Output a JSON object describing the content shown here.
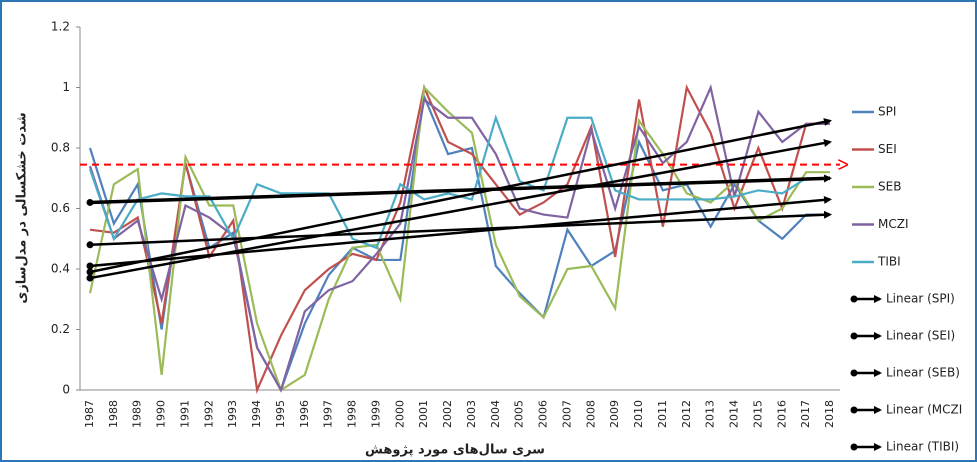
{
  "chart_data": {
    "type": "line",
    "y_label": "شدت خشکسالی در مدل‌سازی",
    "x_label": "سری سال‌های مورد پژوهش",
    "categories": [
      "1987",
      "1988",
      "1989",
      "1990",
      "1991",
      "1992",
      "1993",
      "1994",
      "1995",
      "1996",
      "1997",
      "1998",
      "1999",
      "2000",
      "2001",
      "2002",
      "2003",
      "2004",
      "2005",
      "2006",
      "2007",
      "2008",
      "2009",
      "2010",
      "2011",
      "2012",
      "2013",
      "2014",
      "2015",
      "2016",
      "2017",
      "2018"
    ],
    "series": [
      {
        "name": "SPI",
        "color": "#4f81bd",
        "values": [
          0.8,
          0.55,
          0.68,
          0.2,
          0.75,
          0.47,
          0.52,
          0.14,
          0.0,
          0.22,
          0.38,
          0.47,
          0.43,
          0.43,
          0.97,
          0.78,
          0.8,
          0.41,
          0.32,
          0.24,
          0.53,
          0.41,
          0.46,
          0.82,
          0.66,
          0.68,
          0.54,
          0.68,
          0.56,
          0.5,
          0.58,
          0.58
        ]
      },
      {
        "name": "SEI",
        "color": "#c0504d",
        "values": [
          0.53,
          0.52,
          0.57,
          0.22,
          0.75,
          0.44,
          0.56,
          0.0,
          0.18,
          0.33,
          0.4,
          0.45,
          0.43,
          0.62,
          1.0,
          0.82,
          0.78,
          0.68,
          0.58,
          0.62,
          0.68,
          0.87,
          0.44,
          0.96,
          0.54,
          1.0,
          0.85,
          0.6,
          0.8,
          0.6,
          0.88,
          0.88
        ]
      },
      {
        "name": "SEB",
        "color": "#9bbb59",
        "values": [
          0.32,
          0.68,
          0.73,
          0.05,
          0.77,
          0.61,
          0.61,
          0.22,
          0.0,
          0.05,
          0.3,
          0.47,
          0.48,
          0.3,
          1.0,
          0.92,
          0.85,
          0.48,
          0.31,
          0.24,
          0.4,
          0.41,
          0.27,
          0.89,
          0.78,
          0.65,
          0.62,
          0.69,
          0.56,
          0.6,
          0.72,
          0.72
        ]
      },
      {
        "name": "MCZI",
        "color": "#8064a2",
        "values": [
          0.74,
          0.5,
          0.56,
          0.3,
          0.61,
          0.57,
          0.51,
          0.14,
          0.0,
          0.26,
          0.33,
          0.36,
          0.45,
          0.55,
          0.96,
          0.9,
          0.9,
          0.78,
          0.6,
          0.58,
          0.57,
          0.86,
          0.6,
          0.87,
          0.75,
          0.82,
          1.0,
          0.64,
          0.92,
          0.82,
          0.88,
          0.88
        ]
      },
      {
        "name": "TIBI",
        "color": "#4bacc6",
        "values": [
          0.73,
          0.5,
          0.63,
          0.65,
          0.64,
          0.64,
          0.5,
          0.68,
          0.65,
          0.65,
          0.65,
          0.5,
          0.47,
          0.68,
          0.63,
          0.65,
          0.63,
          0.9,
          0.69,
          0.66,
          0.9,
          0.9,
          0.66,
          0.63,
          0.63,
          0.63,
          0.63,
          0.64,
          0.66,
          0.65,
          0.7,
          0.7
        ]
      }
    ],
    "trendlines": [
      {
        "name": "Linear (SPI)",
        "color": "#000000",
        "values": [
          0.48,
          0.58
        ]
      },
      {
        "name": "Linear (SEI)",
        "color": "#000000",
        "values": [
          0.37,
          0.82
        ]
      },
      {
        "name": "Linear (SEB)",
        "color": "#000000",
        "values": [
          0.41,
          0.63
        ]
      },
      {
        "name": "Linear (MCZI",
        "color": "#000000",
        "values": [
          0.39,
          0.89
        ]
      },
      {
        "name": "Linear (TIBI)",
        "color": "#000000",
        "values": [
          0.62,
          0.7
        ]
      }
    ],
    "threshold": {
      "value": 0.745,
      "color": "#ff0000"
    },
    "ylim": [
      0,
      1.2
    ],
    "yticks": [
      0,
      0.2,
      0.4,
      0.6,
      0.8,
      1,
      1.2
    ]
  }
}
